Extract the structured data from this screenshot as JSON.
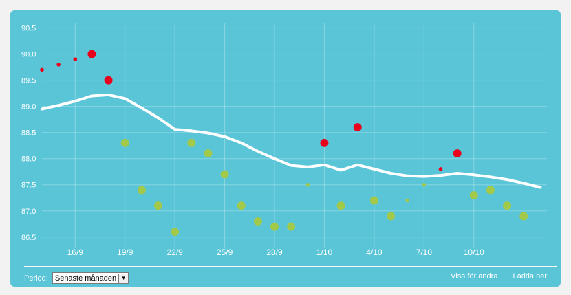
{
  "colors": {
    "panel": "#5bc5d8",
    "line": "#ffffff",
    "point_high": "#e8001c",
    "point_low": "#a2c94a"
  },
  "footer": {
    "period_label": "Period:",
    "period_value": "Senaste månaden",
    "share_link": "Visa för andra",
    "download_link": "Ladda ner"
  },
  "chart_data": {
    "type": "line",
    "ylim": [
      86.3,
      90.6
    ],
    "y_ticks": [
      "86.5",
      "87.0",
      "87.5",
      "88.0",
      "88.5",
      "89.0",
      "89.5",
      "90.0",
      "90.5"
    ],
    "y_tick_values": [
      86.5,
      87.0,
      87.5,
      88.0,
      88.5,
      89.0,
      89.5,
      90.0,
      90.5
    ],
    "x_domain": [
      14,
      44.4
    ],
    "x_ticks": [
      "16/9",
      "19/9",
      "22/9",
      "25/9",
      "28/9",
      "1/10",
      "4/10",
      "7/10",
      "10/10"
    ],
    "x_tick_values": [
      16,
      19,
      22,
      25,
      28,
      31,
      34,
      37,
      40
    ],
    "grid": true,
    "trend": {
      "x": [
        14,
        15,
        16,
        17,
        18,
        19,
        20,
        21,
        22,
        23,
        24,
        25,
        26,
        27,
        28,
        29,
        30,
        31,
        32,
        33,
        34,
        35,
        36,
        37,
        38,
        39,
        40,
        41,
        42,
        43,
        44
      ],
      "y": [
        88.95,
        89.02,
        89.1,
        89.2,
        89.22,
        89.15,
        88.97,
        88.78,
        88.56,
        88.53,
        88.49,
        88.42,
        88.3,
        88.14,
        88.0,
        87.87,
        87.84,
        87.88,
        87.78,
        87.88,
        87.8,
        87.72,
        87.67,
        87.66,
        87.68,
        87.72,
        87.69,
        87.65,
        87.6,
        87.53,
        87.45
      ]
    },
    "points": [
      {
        "x": 14,
        "y": 89.7,
        "type": "high",
        "size": "small"
      },
      {
        "x": 15,
        "y": 89.8,
        "type": "high",
        "size": "small"
      },
      {
        "x": 16,
        "y": 89.9,
        "type": "high",
        "size": "small"
      },
      {
        "x": 17,
        "y": 90.0,
        "type": "high",
        "size": "large"
      },
      {
        "x": 18,
        "y": 89.5,
        "type": "high",
        "size": "large"
      },
      {
        "x": 19,
        "y": 88.3,
        "type": "low",
        "size": "large"
      },
      {
        "x": 20,
        "y": 87.4,
        "type": "low",
        "size": "large"
      },
      {
        "x": 21,
        "y": 87.1,
        "type": "low",
        "size": "large"
      },
      {
        "x": 22,
        "y": 86.6,
        "type": "low",
        "size": "large"
      },
      {
        "x": 23,
        "y": 88.3,
        "type": "low",
        "size": "large"
      },
      {
        "x": 24,
        "y": 88.1,
        "type": "low",
        "size": "large"
      },
      {
        "x": 25,
        "y": 87.7,
        "type": "low",
        "size": "large"
      },
      {
        "x": 26,
        "y": 87.1,
        "type": "low",
        "size": "large"
      },
      {
        "x": 27,
        "y": 86.8,
        "type": "low",
        "size": "large"
      },
      {
        "x": 28,
        "y": 86.7,
        "type": "low",
        "size": "large"
      },
      {
        "x": 29,
        "y": 86.7,
        "type": "low",
        "size": "large"
      },
      {
        "x": 30,
        "y": 87.5,
        "type": "low",
        "size": "small"
      },
      {
        "x": 31,
        "y": 88.3,
        "type": "high",
        "size": "large"
      },
      {
        "x": 32,
        "y": 87.1,
        "type": "low",
        "size": "large"
      },
      {
        "x": 33,
        "y": 88.6,
        "type": "high",
        "size": "large"
      },
      {
        "x": 34,
        "y": 87.2,
        "type": "low",
        "size": "large"
      },
      {
        "x": 35,
        "y": 86.9,
        "type": "low",
        "size": "large"
      },
      {
        "x": 36,
        "y": 87.2,
        "type": "low",
        "size": "small"
      },
      {
        "x": 37,
        "y": 87.5,
        "type": "low",
        "size": "small"
      },
      {
        "x": 38,
        "y": 87.8,
        "type": "high",
        "size": "small"
      },
      {
        "x": 39,
        "y": 88.1,
        "type": "high",
        "size": "large"
      },
      {
        "x": 40,
        "y": 87.3,
        "type": "low",
        "size": "large"
      },
      {
        "x": 41,
        "y": 87.4,
        "type": "low",
        "size": "large"
      },
      {
        "x": 42,
        "y": 87.1,
        "type": "low",
        "size": "large"
      },
      {
        "x": 43,
        "y": 86.9,
        "type": "low",
        "size": "large"
      }
    ]
  }
}
